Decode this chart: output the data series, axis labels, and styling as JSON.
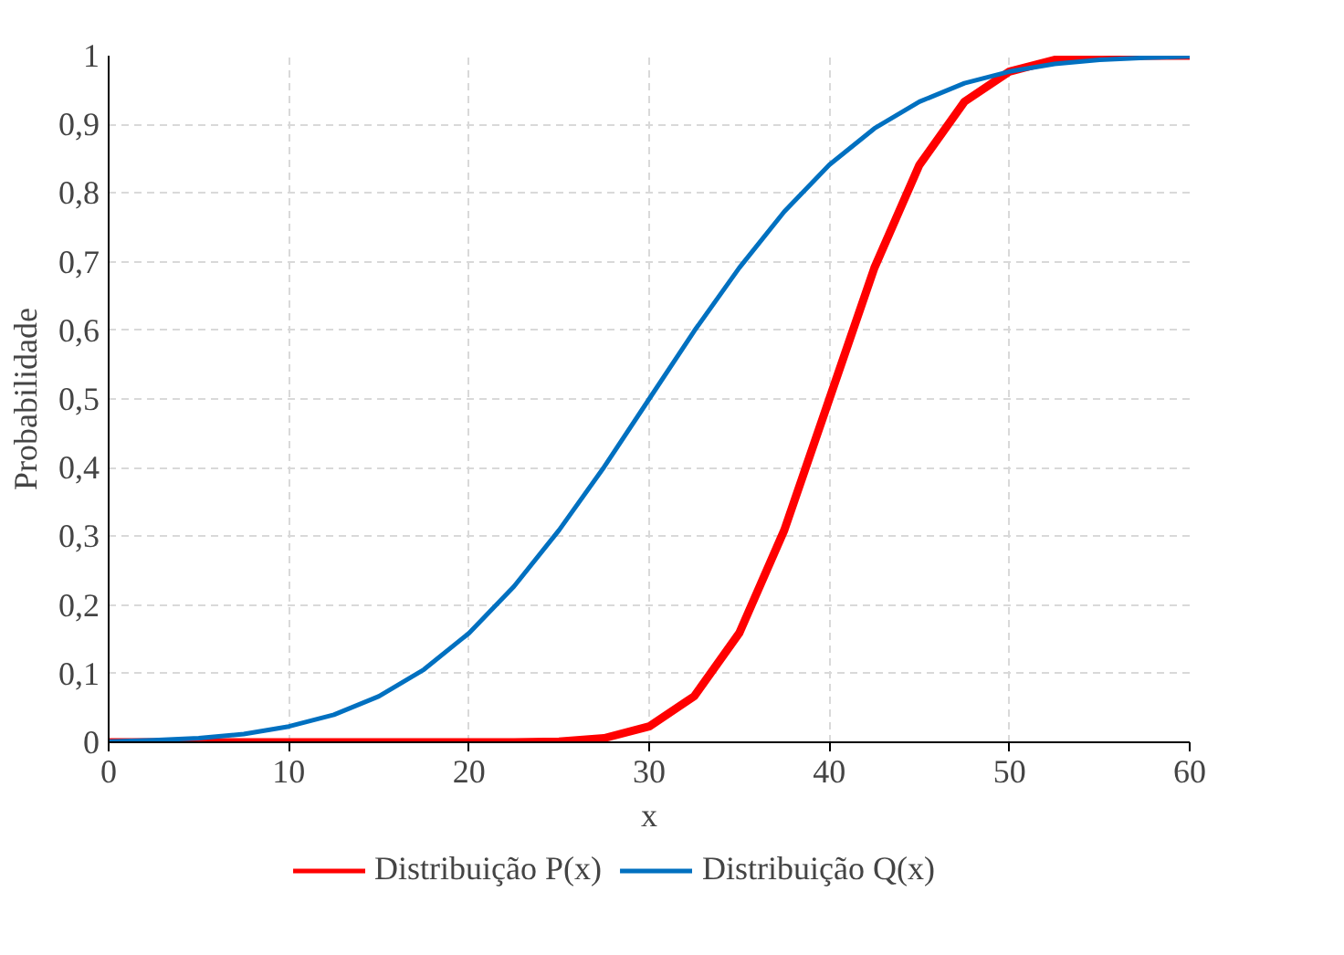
{
  "chart_data": {
    "type": "line",
    "xlabel": "x",
    "ylabel": "Probabilidade",
    "x": [
      0,
      2.5,
      5,
      7.5,
      10,
      12.5,
      15,
      17.5,
      20,
      22.5,
      25,
      27.5,
      30,
      32.5,
      35,
      37.5,
      40,
      42.5,
      45,
      47.5,
      50,
      52.5,
      55,
      57.5,
      60
    ],
    "series": [
      {
        "name": "Distribuição P(x)",
        "color": "#ff0000",
        "values": [
          0,
          0,
          0,
          0,
          0,
          0,
          0,
          0,
          0,
          0,
          0.001,
          0.006,
          0.023,
          0.067,
          0.159,
          0.309,
          0.5,
          0.691,
          0.841,
          0.933,
          0.977,
          0.994,
          0.999,
          1,
          1
        ]
      },
      {
        "name": "Distribuição Q(x)",
        "color": "#0070c0",
        "values": [
          0.001,
          0.003,
          0.006,
          0.012,
          0.023,
          0.04,
          0.067,
          0.106,
          0.159,
          0.227,
          0.309,
          0.401,
          0.5,
          0.599,
          0.691,
          0.773,
          0.841,
          0.894,
          0.933,
          0.96,
          0.977,
          0.988,
          0.994,
          0.997,
          0.999
        ]
      }
    ],
    "xlim": [
      0,
      60
    ],
    "xticks": [
      0,
      10,
      20,
      30,
      40,
      50,
      60
    ],
    "ylim": [
      0,
      1
    ],
    "yticks": [
      0,
      {
        "value": 0.1,
        "label": "0,1"
      },
      {
        "value": 0.2,
        "label": "0,2"
      },
      {
        "value": 0.3,
        "label": "0,3"
      },
      {
        "value": 0.4,
        "label": "0,4"
      },
      {
        "value": 0.5,
        "label": "0,5"
      },
      {
        "value": 0.6,
        "label": "0,6"
      },
      {
        "value": 0.7,
        "label": "0,7"
      },
      {
        "value": 0.8,
        "label": "0,8"
      },
      {
        "value": 0.9,
        "label": "0,9"
      },
      1
    ],
    "grid": true,
    "legend": "bottom",
    "line_style": "solid",
    "marker": "none"
  }
}
